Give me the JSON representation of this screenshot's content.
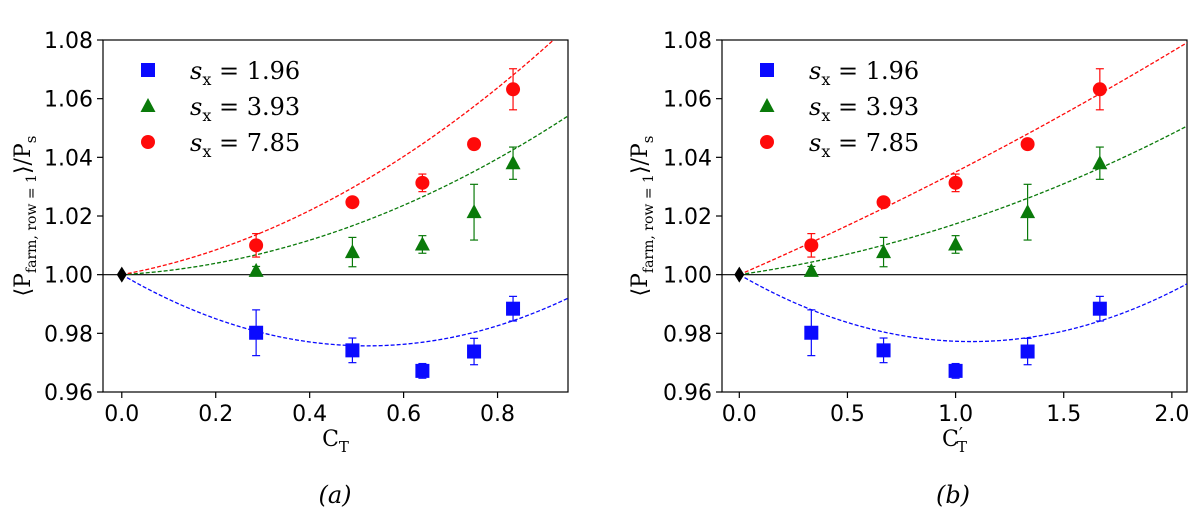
{
  "chart_data": [
    {
      "type": "scatter",
      "panel_label": "(a)",
      "xlabel": "C",
      "xlabel_sub": "T",
      "xlabel_prime": "",
      "ylabel_main": "⟨P",
      "ylabel_sub": "farm, row = 1",
      "ylabel_tail": "⟩/P",
      "ylabel_tail_sub": "s",
      "xlim": [
        -0.04,
        0.95
      ],
      "ylim": [
        0.96,
        1.08
      ],
      "xticks": [
        0.0,
        0.2,
        0.4,
        0.6,
        0.8
      ],
      "xtick_labels": [
        "0.0",
        "0.2",
        "0.4",
        "0.6",
        "0.8"
      ],
      "yticks": [
        0.96,
        0.98,
        1.0,
        1.02,
        1.04,
        1.06,
        1.08
      ],
      "ytick_labels": [
        "0.96",
        "0.98",
        "1.00",
        "1.02",
        "1.04",
        "1.06",
        "1.08"
      ],
      "reference": {
        "x": 0.0,
        "y": 1.0,
        "marker": "diamond",
        "color": "#000000"
      },
      "hline": 1.0,
      "legend": {
        "position": "top-left"
      },
      "series": [
        {
          "name": "s_x = 1.96",
          "label_var": "s",
          "label_sub": "x",
          "label_value": " = 1.96",
          "marker": "square",
          "color": "#0a0aff",
          "x": [
            0.286,
            0.491,
            0.64,
            0.75,
            0.833
          ],
          "y": [
            0.9802,
            0.9742,
            0.9672,
            0.9738,
            0.9884
          ],
          "err": [
            0.0078,
            0.0042,
            0.0025,
            0.0045,
            0.0042
          ],
          "fit": [
            1.0,
            -0.0929,
            0.0889
          ]
        },
        {
          "name": "s_x = 3.93",
          "label_var": "s",
          "label_sub": "x",
          "label_value": " = 3.93",
          "marker": "triangle",
          "color": "#0a7a0a",
          "x": [
            0.286,
            0.491,
            0.64,
            0.75,
            0.833
          ],
          "y": [
            1.0013,
            1.0077,
            1.0103,
            1.0213,
            1.038
          ],
          "err": [
            0.0015,
            0.005,
            0.003,
            0.0095,
            0.0055
          ],
          "fit": [
            1.0,
            0.00935,
            0.0501
          ]
        },
        {
          "name": "s_x = 7.85",
          "label_var": "s",
          "label_sub": "x",
          "label_value": " = 7.85",
          "marker": "circle",
          "color": "#ff0a0a",
          "x": [
            0.286,
            0.491,
            0.64,
            0.75,
            0.833
          ],
          "y": [
            1.01,
            1.0247,
            1.0313,
            1.0445,
            1.0632
          ],
          "err": [
            0.004,
            0.0015,
            0.003,
            0.0015,
            0.007
          ],
          "fit": [
            1.0,
            0.0297,
            0.0624
          ]
        }
      ]
    },
    {
      "type": "scatter",
      "panel_label": "(b)",
      "xlabel": "C",
      "xlabel_sub": "T",
      "xlabel_prime": "′",
      "ylabel_main": "⟨P",
      "ylabel_sub": "farm, row = 1",
      "ylabel_tail": "⟩/P",
      "ylabel_tail_sub": "s",
      "xlim": [
        -0.08,
        2.07
      ],
      "ylim": [
        0.96,
        1.08
      ],
      "xticks": [
        0.0,
        0.5,
        1.0,
        1.5,
        2.0
      ],
      "xtick_labels": [
        "0.0",
        "0.5",
        "1.0",
        "1.5",
        "2.0"
      ],
      "yticks": [
        0.96,
        0.98,
        1.0,
        1.02,
        1.04,
        1.06,
        1.08
      ],
      "ytick_labels": [
        "0.96",
        "0.98",
        "1.00",
        "1.02",
        "1.04",
        "1.06",
        "1.08"
      ],
      "reference": {
        "x": 0.0,
        "y": 1.0,
        "marker": "diamond",
        "color": "#000000"
      },
      "hline": 1.0,
      "legend": {
        "position": "top-left"
      },
      "series": [
        {
          "name": "s_x = 1.96",
          "label_var": "s",
          "label_sub": "x",
          "label_value": " = 1.96",
          "marker": "square",
          "color": "#0a0aff",
          "x": [
            0.333,
            0.667,
            1.0,
            1.333,
            1.667
          ],
          "y": [
            0.9802,
            0.9742,
            0.9672,
            0.9738,
            0.9884
          ],
          "err": [
            0.0078,
            0.0042,
            0.0025,
            0.0045,
            0.0042
          ],
          "fit": [
            1.0,
            -0.0425,
            0.0198
          ]
        },
        {
          "name": "s_x = 3.93",
          "label_var": "s",
          "label_sub": "x",
          "label_value": " = 3.93",
          "marker": "triangle",
          "color": "#0a7a0a",
          "x": [
            0.333,
            0.667,
            1.0,
            1.333,
            1.667
          ],
          "y": [
            1.0013,
            1.0077,
            1.0103,
            1.0213,
            1.038
          ],
          "err": [
            0.0015,
            0.005,
            0.003,
            0.0095,
            0.0055
          ],
          "fit": [
            1.0,
            0.0106,
            0.0067
          ]
        },
        {
          "name": "s_x = 7.85",
          "label_var": "s",
          "label_sub": "x",
          "label_value": " = 7.85",
          "marker": "circle",
          "color": "#ff0a0a",
          "x": [
            0.333,
            0.667,
            1.0,
            1.333,
            1.667
          ],
          "y": [
            1.01,
            1.0247,
            1.0313,
            1.0445,
            1.0632
          ],
          "err": [
            0.004,
            0.0015,
            0.003,
            0.0015,
            0.007
          ],
          "fit": [
            1.0,
            0.032,
            0.003
          ]
        }
      ]
    }
  ]
}
